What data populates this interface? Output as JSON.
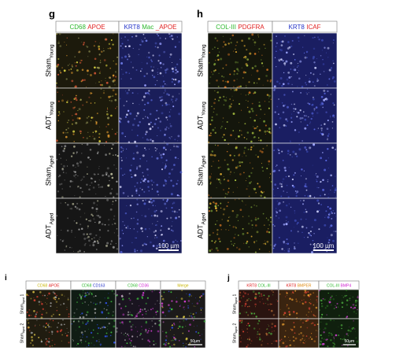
{
  "panels": [
    {
      "label": "g",
      "columns": [
        {
          "parts": [
            {
              "text": "CD68",
              "color": "#2db82d"
            },
            {
              "text": "APOE",
              "color": "#e02020"
            }
          ]
        },
        {
          "parts": [
            {
              "text": "KRT8",
              "color": "#2434c8"
            },
            {
              "text": "Mac",
              "color": "#2db82d"
            },
            {
              "text": "_APOE",
              "color": "#e02020"
            }
          ]
        }
      ],
      "rows": [
        {
          "text": "Sham",
          "sub": "Young"
        },
        {
          "text": "ADT",
          "sub": "Young"
        },
        {
          "text": "Sham",
          "sub": "Aged"
        },
        {
          "text": "ADT",
          "sub": "Aged"
        }
      ],
      "scale_bar": "100 µm"
    },
    {
      "label": "h",
      "columns": [
        {
          "parts": [
            {
              "text": "COL-III",
              "color": "#2db82d"
            },
            {
              "text": "PDGFRA",
              "color": "#e02020"
            }
          ]
        },
        {
          "parts": [
            {
              "text": "KRT8",
              "color": "#2434c8"
            },
            {
              "text": "ICAF",
              "color": "#e02020"
            }
          ]
        }
      ],
      "rows": [
        {
          "text": "Sham",
          "sub": "Young"
        },
        {
          "text": "ADT",
          "sub": "Young"
        },
        {
          "text": "Sham",
          "sub": "Aged"
        },
        {
          "text": "ADT",
          "sub": "Aged"
        }
      ],
      "scale_bar": "100 µm"
    },
    {
      "label": "i",
      "columns": [
        {
          "parts": [
            {
              "text": "CD68",
              "color": "#c8b400"
            },
            {
              "text": "APOE",
              "color": "#e02020"
            }
          ]
        },
        {
          "parts": [
            {
              "text": "CD68",
              "color": "#2db82d"
            },
            {
              "text": "CD163",
              "color": "#2434c8"
            }
          ]
        },
        {
          "parts": [
            {
              "text": "CD68",
              "color": "#2db82d"
            },
            {
              "text": "CD36",
              "color": "#d020d0"
            }
          ]
        },
        {
          "parts": [
            {
              "text": "Merge",
              "color": "#c8b400"
            }
          ]
        }
      ],
      "rows": [
        {
          "text": "Sham",
          "sub": "Aged",
          "suffix": "1"
        },
        {
          "text": "Sham",
          "sub": "Aged",
          "suffix": "2"
        }
      ],
      "scale_bar": "50μm"
    },
    {
      "label": "j",
      "columns": [
        {
          "parts": [
            {
              "text": "KRT8",
              "color": "#e02020"
            },
            {
              "text": "COL-III",
              "color": "#2db82d"
            }
          ]
        },
        {
          "parts": [
            {
              "text": "KRT8",
              "color": "#e02020"
            },
            {
              "text": "BMPER",
              "color": "#e08a10"
            }
          ]
        },
        {
          "parts": [
            {
              "text": "COL-III",
              "color": "#2db82d"
            },
            {
              "text": "BMP4",
              "color": "#d020d0"
            }
          ]
        }
      ],
      "rows": [
        {
          "text": "Sham",
          "sub": "Aged",
          "suffix": "1"
        },
        {
          "text": "Sham",
          "sub": "Aged",
          "suffix": "2"
        }
      ],
      "scale_bar": "50μm"
    }
  ]
}
